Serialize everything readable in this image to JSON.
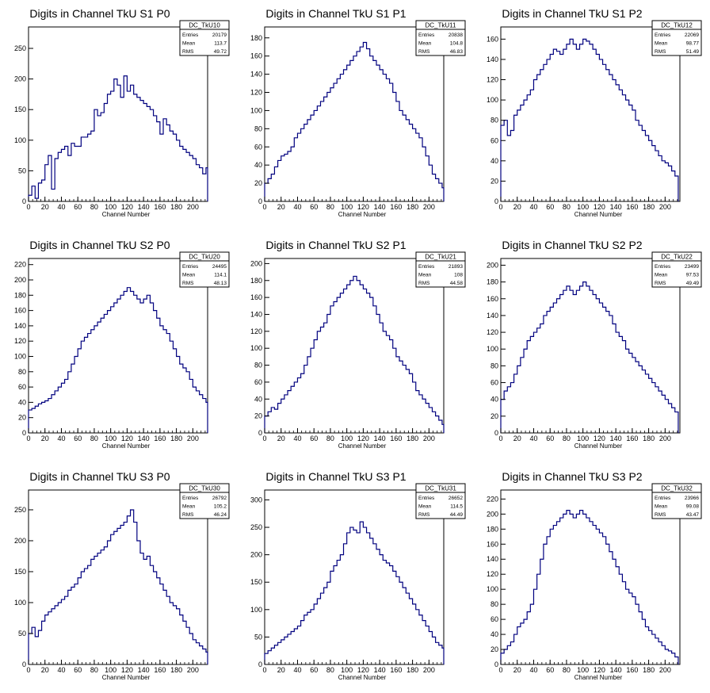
{
  "chart_data": [
    {
      "type": "histogram",
      "title": "Digits in Channel TkU S1 P0",
      "xlabel": "Channel Number",
      "stats": {
        "name": "DC_TkU10",
        "entries": "20179",
        "mean": "113.7",
        "rms": "49.72"
      },
      "xlim": [
        0,
        218
      ],
      "ylim": [
        0,
        285
      ],
      "xticks": [
        0,
        20,
        40,
        60,
        80,
        100,
        120,
        140,
        160,
        180,
        200
      ],
      "yticks": [
        0,
        50,
        100,
        150,
        200,
        250
      ],
      "x": [
        0,
        4,
        8,
        12,
        16,
        20,
        24,
        28,
        32,
        36,
        40,
        44,
        48,
        52,
        56,
        60,
        64,
        68,
        72,
        76,
        80,
        84,
        88,
        92,
        96,
        100,
        104,
        108,
        112,
        116,
        120,
        124,
        128,
        132,
        136,
        140,
        144,
        148,
        152,
        156,
        160,
        164,
        168,
        172,
        176,
        180,
        184,
        188,
        192,
        196,
        200,
        204,
        208,
        212,
        216
      ],
      "values": [
        10,
        25,
        5,
        30,
        35,
        60,
        75,
        20,
        70,
        80,
        85,
        90,
        75,
        95,
        90,
        90,
        105,
        105,
        110,
        115,
        150,
        140,
        145,
        160,
        175,
        180,
        200,
        190,
        170,
        205,
        180,
        190,
        175,
        170,
        165,
        160,
        155,
        150,
        140,
        130,
        110,
        135,
        125,
        115,
        110,
        100,
        90,
        85,
        80,
        75,
        70,
        60,
        55,
        45,
        55
      ]
    },
    {
      "type": "histogram",
      "title": "Digits in Channel TkU S1 P1",
      "xlabel": "Channel Number",
      "stats": {
        "name": "DC_TkU11",
        "entries": "20838",
        "mean": "104.8",
        "rms": "46.83"
      },
      "xlim": [
        0,
        218
      ],
      "ylim": [
        0,
        192
      ],
      "xticks": [
        0,
        20,
        40,
        60,
        80,
        100,
        120,
        140,
        160,
        180,
        200
      ],
      "yticks": [
        0,
        20,
        40,
        60,
        80,
        100,
        120,
        140,
        160,
        180
      ],
      "x": [
        0,
        4,
        8,
        12,
        16,
        20,
        24,
        28,
        32,
        36,
        40,
        44,
        48,
        52,
        56,
        60,
        64,
        68,
        72,
        76,
        80,
        84,
        88,
        92,
        96,
        100,
        104,
        108,
        112,
        116,
        120,
        124,
        128,
        132,
        136,
        140,
        144,
        148,
        152,
        156,
        160,
        164,
        168,
        172,
        176,
        180,
        184,
        188,
        192,
        196,
        200,
        204,
        208,
        212,
        216
      ],
      "values": [
        20,
        25,
        30,
        38,
        45,
        50,
        52,
        55,
        60,
        70,
        75,
        80,
        85,
        90,
        95,
        100,
        105,
        110,
        115,
        120,
        125,
        130,
        135,
        140,
        145,
        150,
        155,
        160,
        165,
        170,
        175,
        168,
        160,
        155,
        150,
        145,
        140,
        135,
        130,
        120,
        110,
        100,
        95,
        90,
        85,
        80,
        75,
        70,
        60,
        50,
        40,
        30,
        25,
        20,
        15
      ]
    },
    {
      "type": "histogram",
      "title": "Digits in Channel TkU S1 P2",
      "xlabel": "Channel Number",
      "stats": {
        "name": "DC_TkU12",
        "entries": "22069",
        "mean": "98.77",
        "rms": "51.49"
      },
      "xlim": [
        0,
        218
      ],
      "ylim": [
        0,
        172
      ],
      "xticks": [
        0,
        20,
        40,
        60,
        80,
        100,
        120,
        140,
        160,
        180,
        200
      ],
      "yticks": [
        0,
        20,
        40,
        60,
        80,
        100,
        120,
        140,
        160
      ],
      "x": [
        0,
        4,
        8,
        12,
        16,
        20,
        24,
        28,
        32,
        36,
        40,
        44,
        48,
        52,
        56,
        60,
        64,
        68,
        72,
        76,
        80,
        84,
        88,
        92,
        96,
        100,
        104,
        108,
        112,
        116,
        120,
        124,
        128,
        132,
        136,
        140,
        144,
        148,
        152,
        156,
        160,
        164,
        168,
        172,
        176,
        180,
        184,
        188,
        192,
        196,
        200,
        204,
        208,
        212
      ],
      "values": [
        75,
        80,
        65,
        70,
        85,
        90,
        95,
        100,
        105,
        110,
        120,
        125,
        130,
        135,
        140,
        145,
        150,
        148,
        145,
        150,
        155,
        160,
        155,
        150,
        155,
        160,
        158,
        155,
        150,
        145,
        140,
        135,
        130,
        125,
        120,
        115,
        110,
        105,
        100,
        95,
        90,
        80,
        75,
        70,
        65,
        60,
        55,
        50,
        45,
        40,
        38,
        35,
        30,
        25
      ]
    },
    {
      "type": "histogram",
      "title": "Digits in Channel TkU S2 P0",
      "xlabel": "Channel Number",
      "stats": {
        "name": "DC_TkU20",
        "entries": "24495",
        "mean": "114.1",
        "rms": "48.13"
      },
      "xlim": [
        0,
        218
      ],
      "ylim": [
        0,
        228
      ],
      "xticks": [
        0,
        20,
        40,
        60,
        80,
        100,
        120,
        140,
        160,
        180,
        200
      ],
      "yticks": [
        0,
        20,
        40,
        60,
        80,
        100,
        120,
        140,
        160,
        180,
        200,
        220
      ],
      "x": [
        0,
        4,
        8,
        12,
        16,
        20,
        24,
        28,
        32,
        36,
        40,
        44,
        48,
        52,
        56,
        60,
        64,
        68,
        72,
        76,
        80,
        84,
        88,
        92,
        96,
        100,
        104,
        108,
        112,
        116,
        120,
        124,
        128,
        132,
        136,
        140,
        144,
        148,
        152,
        156,
        160,
        164,
        168,
        172,
        176,
        180,
        184,
        188,
        192,
        196,
        200,
        204,
        208,
        212,
        216
      ],
      "values": [
        30,
        32,
        35,
        38,
        40,
        42,
        45,
        50,
        55,
        60,
        65,
        70,
        80,
        90,
        100,
        110,
        120,
        125,
        130,
        135,
        140,
        145,
        150,
        155,
        160,
        165,
        170,
        175,
        180,
        185,
        190,
        185,
        180,
        175,
        170,
        175,
        180,
        170,
        160,
        150,
        140,
        135,
        130,
        120,
        110,
        100,
        90,
        85,
        80,
        70,
        60,
        55,
        50,
        45,
        40
      ]
    },
    {
      "type": "histogram",
      "title": "Digits in Channel TkU S2 P1",
      "xlabel": "Channel Number",
      "stats": {
        "name": "DC_TkU21",
        "entries": "21893",
        "mean": "108",
        "rms": "44.58"
      },
      "xlim": [
        0,
        218
      ],
      "ylim": [
        0,
        206
      ],
      "xticks": [
        0,
        20,
        40,
        60,
        80,
        100,
        120,
        140,
        160,
        180,
        200
      ],
      "yticks": [
        0,
        20,
        40,
        60,
        80,
        100,
        120,
        140,
        160,
        180,
        200
      ],
      "x": [
        0,
        4,
        8,
        12,
        16,
        20,
        24,
        28,
        32,
        36,
        40,
        44,
        48,
        52,
        56,
        60,
        64,
        68,
        72,
        76,
        80,
        84,
        88,
        92,
        96,
        100,
        104,
        108,
        112,
        116,
        120,
        124,
        128,
        132,
        136,
        140,
        144,
        148,
        152,
        156,
        160,
        164,
        168,
        172,
        176,
        180,
        184,
        188,
        192,
        196,
        200,
        204,
        208,
        212,
        216
      ],
      "values": [
        20,
        25,
        30,
        28,
        35,
        40,
        45,
        50,
        55,
        60,
        65,
        70,
        80,
        90,
        100,
        110,
        120,
        125,
        130,
        140,
        150,
        155,
        160,
        165,
        170,
        175,
        180,
        185,
        180,
        175,
        170,
        165,
        160,
        150,
        140,
        130,
        120,
        115,
        110,
        100,
        90,
        85,
        80,
        75,
        70,
        60,
        50,
        45,
        40,
        35,
        30,
        25,
        20,
        15,
        10
      ]
    },
    {
      "type": "histogram",
      "title": "Digits in Channel TkU S2 P2",
      "xlabel": "Channel Number",
      "stats": {
        "name": "DC_TkU22",
        "entries": "23499",
        "mean": "97.53",
        "rms": "49.49"
      },
      "xlim": [
        0,
        218
      ],
      "ylim": [
        0,
        208
      ],
      "xticks": [
        0,
        20,
        40,
        60,
        80,
        100,
        120,
        140,
        160,
        180,
        200
      ],
      "yticks": [
        0,
        20,
        40,
        60,
        80,
        100,
        120,
        140,
        160,
        180,
        200
      ],
      "x": [
        0,
        4,
        8,
        12,
        16,
        20,
        24,
        28,
        32,
        36,
        40,
        44,
        48,
        52,
        56,
        60,
        64,
        68,
        72,
        76,
        80,
        84,
        88,
        92,
        96,
        100,
        104,
        108,
        112,
        116,
        120,
        124,
        128,
        132,
        136,
        140,
        144,
        148,
        152,
        156,
        160,
        164,
        168,
        172,
        176,
        180,
        184,
        188,
        192,
        196,
        200,
        204,
        208,
        212
      ],
      "values": [
        40,
        50,
        55,
        60,
        70,
        80,
        90,
        100,
        110,
        115,
        120,
        125,
        130,
        140,
        145,
        150,
        155,
        160,
        165,
        170,
        175,
        170,
        165,
        170,
        175,
        180,
        175,
        170,
        165,
        160,
        155,
        150,
        145,
        140,
        130,
        120,
        115,
        110,
        100,
        95,
        90,
        85,
        80,
        75,
        70,
        65,
        60,
        55,
        50,
        45,
        40,
        35,
        30,
        25
      ]
    },
    {
      "type": "histogram",
      "title": "Digits in Channel TkU S3 P0",
      "xlabel": "Channel Number",
      "stats": {
        "name": "DC_TkU30",
        "entries": "26792",
        "mean": "105.2",
        "rms": "46.24"
      },
      "xlim": [
        0,
        218
      ],
      "ylim": [
        0,
        282
      ],
      "xticks": [
        0,
        20,
        40,
        60,
        80,
        100,
        120,
        140,
        160,
        180,
        200
      ],
      "yticks": [
        0,
        50,
        100,
        150,
        200,
        250
      ],
      "x": [
        0,
        4,
        8,
        12,
        16,
        20,
        24,
        28,
        32,
        36,
        40,
        44,
        48,
        52,
        56,
        60,
        64,
        68,
        72,
        76,
        80,
        84,
        88,
        92,
        96,
        100,
        104,
        108,
        112,
        116,
        120,
        124,
        128,
        132,
        136,
        140,
        144,
        148,
        152,
        156,
        160,
        164,
        168,
        172,
        176,
        180,
        184,
        188,
        192,
        196,
        200,
        204,
        208,
        212,
        216
      ],
      "values": [
        50,
        60,
        45,
        55,
        70,
        80,
        85,
        90,
        95,
        100,
        105,
        110,
        120,
        125,
        130,
        140,
        150,
        155,
        160,
        170,
        175,
        180,
        185,
        190,
        200,
        210,
        215,
        220,
        225,
        230,
        240,
        250,
        230,
        200,
        180,
        170,
        175,
        160,
        150,
        140,
        130,
        120,
        110,
        100,
        95,
        90,
        80,
        70,
        60,
        50,
        40,
        35,
        30,
        25,
        20
      ]
    },
    {
      "type": "histogram",
      "title": "Digits in Channel TkU S3 P1",
      "xlabel": "Channel Number",
      "stats": {
        "name": "DC_TkU31",
        "entries": "26652",
        "mean": "114.5",
        "rms": "44.49"
      },
      "xlim": [
        0,
        218
      ],
      "ylim": [
        0,
        318
      ],
      "xticks": [
        0,
        20,
        40,
        60,
        80,
        100,
        120,
        140,
        160,
        180,
        200
      ],
      "yticks": [
        0,
        50,
        100,
        150,
        200,
        250,
        300
      ],
      "x": [
        0,
        4,
        8,
        12,
        16,
        20,
        24,
        28,
        32,
        36,
        40,
        44,
        48,
        52,
        56,
        60,
        64,
        68,
        72,
        76,
        80,
        84,
        88,
        92,
        96,
        100,
        104,
        108,
        112,
        116,
        120,
        124,
        128,
        132,
        136,
        140,
        144,
        148,
        152,
        156,
        160,
        164,
        168,
        172,
        176,
        180,
        184,
        188,
        192,
        196,
        200,
        204,
        208,
        212,
        216
      ],
      "values": [
        20,
        25,
        30,
        35,
        40,
        45,
        50,
        55,
        60,
        65,
        70,
        80,
        90,
        95,
        100,
        110,
        120,
        130,
        140,
        150,
        170,
        180,
        190,
        200,
        220,
        240,
        250,
        245,
        240,
        260,
        250,
        240,
        230,
        220,
        210,
        200,
        190,
        185,
        180,
        170,
        160,
        150,
        140,
        130,
        120,
        110,
        100,
        90,
        80,
        70,
        60,
        50,
        40,
        35,
        30
      ]
    },
    {
      "type": "histogram",
      "title": "Digits in Channel TkU S3 P2",
      "xlabel": "Channel Number",
      "stats": {
        "name": "DC_TkU32",
        "entries": "23966",
        "mean": "99.08",
        "rms": "43.47"
      },
      "xlim": [
        0,
        218
      ],
      "ylim": [
        0,
        232
      ],
      "xticks": [
        0,
        20,
        40,
        60,
        80,
        100,
        120,
        140,
        160,
        180,
        200
      ],
      "yticks": [
        0,
        20,
        40,
        60,
        80,
        100,
        120,
        140,
        160,
        180,
        200,
        220
      ],
      "x": [
        0,
        4,
        8,
        12,
        16,
        20,
        24,
        28,
        32,
        36,
        40,
        44,
        48,
        52,
        56,
        60,
        64,
        68,
        72,
        76,
        80,
        84,
        88,
        92,
        96,
        100,
        104,
        108,
        112,
        116,
        120,
        124,
        128,
        132,
        136,
        140,
        144,
        148,
        152,
        156,
        160,
        164,
        168,
        172,
        176,
        180,
        184,
        188,
        192,
        196,
        200,
        204,
        208,
        212
      ],
      "values": [
        15,
        20,
        25,
        30,
        40,
        50,
        55,
        60,
        70,
        80,
        100,
        120,
        140,
        160,
        170,
        180,
        185,
        190,
        195,
        200,
        205,
        200,
        195,
        200,
        205,
        200,
        195,
        190,
        185,
        180,
        175,
        170,
        160,
        150,
        140,
        130,
        120,
        110,
        100,
        95,
        90,
        80,
        70,
        60,
        50,
        45,
        40,
        35,
        30,
        25,
        20,
        18,
        15,
        10
      ]
    }
  ]
}
